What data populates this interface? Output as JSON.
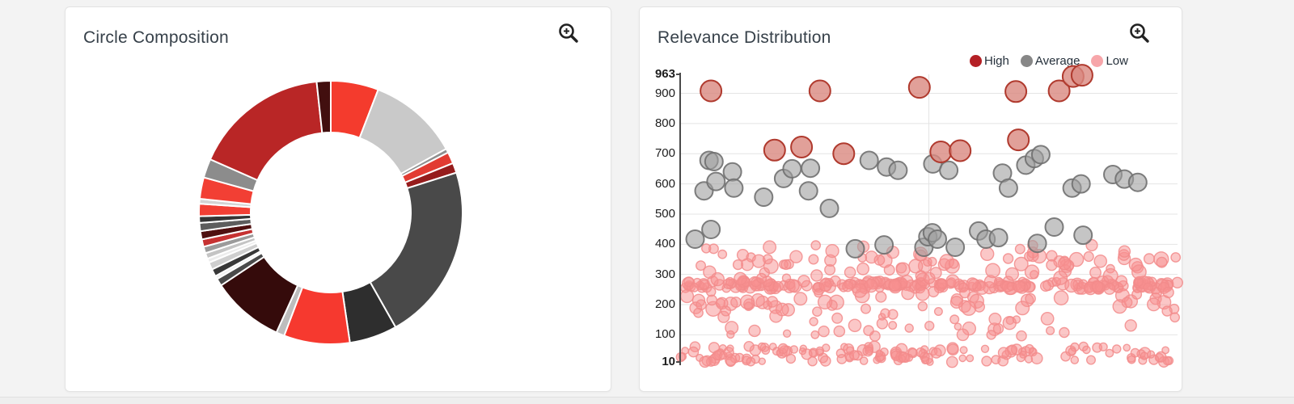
{
  "colors": {
    "page_background": "#f3f3f3",
    "card_background": "#ffffff",
    "card_border": "#e3e3e3",
    "title_text": "#37414a",
    "axis_line": "#4a4a4a",
    "gridline": "#e4e4e4",
    "icon": "#222222"
  },
  "left_card": {
    "zoom_icon": "zoom-in-icon"
  },
  "right_card": {
    "zoom_icon": "zoom-in-icon"
  },
  "chart_data": [
    {
      "type": "pie",
      "title": "Circle Composition",
      "donut": true,
      "inner_radius_px": 99,
      "outer_radius_px": 163,
      "start_angle_deg": 0,
      "segments": [
        {
          "color": "#f43b2d",
          "value": 5.8
        },
        {
          "color": "#c9c9c9",
          "value": 11.0
        },
        {
          "color": "#8f8f8f",
          "value": 0.5
        },
        {
          "color": "#e23b32",
          "value": 1.4
        },
        {
          "color": "#961c1c",
          "value": 1.2
        },
        {
          "color": "#494949",
          "value": 21.5
        },
        {
          "color": "#2e2e2e",
          "value": 5.8
        },
        {
          "color": "#f6392f",
          "value": 8.0
        },
        {
          "color": "#bdbdbd",
          "value": 1.0
        },
        {
          "color": "#350b0b",
          "value": 8.8
        },
        {
          "color": "#4a4a4a",
          "value": 0.9
        },
        {
          "color": "#f0f0f0",
          "value": 0.4
        },
        {
          "color": "#383838",
          "value": 0.9
        },
        {
          "color": "#cfcfcf",
          "value": 0.9
        },
        {
          "color": "#ececec",
          "value": 0.5
        },
        {
          "color": "#c4c4c4",
          "value": 0.7
        },
        {
          "color": "#9b9b9b",
          "value": 0.8
        },
        {
          "color": "#c63232",
          "value": 0.9
        },
        {
          "color": "#4f1010",
          "value": 1.0
        },
        {
          "color": "#5d5d5d",
          "value": 1.0
        },
        {
          "color": "#353535",
          "value": 0.8
        },
        {
          "color": "#f23f34",
          "value": 1.5
        },
        {
          "color": "#d4d4d4",
          "value": 0.6
        },
        {
          "color": "#f23f34",
          "value": 2.6
        },
        {
          "color": "#8c8c8c",
          "value": 2.3
        },
        {
          "color": "#b92626",
          "value": 16.5
        },
        {
          "color": "#420f0f",
          "value": 1.7
        }
      ]
    },
    {
      "type": "scatter",
      "title": "Relevance Distribution",
      "ylim": [
        10,
        963
      ],
      "yticks": [
        "963",
        "900",
        "800",
        "700",
        "600",
        "500",
        "400",
        "300",
        "200",
        "100",
        "10"
      ],
      "bold_yticks": [
        "963",
        "10"
      ],
      "x_gridline_frac": 0.5,
      "grid": true,
      "legend_position": "top-right",
      "legend": [
        {
          "label": "High",
          "color": "#b42025"
        },
        {
          "label": "Average",
          "color": "#878787"
        },
        {
          "label": "Low",
          "color": "#f7a6aa"
        }
      ],
      "series": [
        {
          "name": "Low",
          "fill": "#f78f8f",
          "fill_opacity": 0.5,
          "stroke": "#f28b8b",
          "stroke_opacity": 0.85,
          "clusters": [
            {
              "count": 210,
              "x": [
                0.0,
                1.0
              ],
              "value": [
                252,
                278
              ],
              "radius": [
                5,
                8
              ]
            },
            {
              "count": 70,
              "x": [
                0.0,
                1.0
              ],
              "value": [
                282,
                368
              ],
              "radius": [
                5,
                9
              ]
            },
            {
              "count": 55,
              "x": [
                0.0,
                1.0
              ],
              "value": [
                185,
                250
              ],
              "radius": [
                5,
                9
              ]
            },
            {
              "count": 45,
              "x": [
                0.0,
                1.0
              ],
              "value": [
                95,
                185
              ],
              "radius": [
                4,
                8
              ]
            },
            {
              "count": 150,
              "x": [
                0.0,
                1.0
              ],
              "value": [
                10,
                62
              ],
              "radius": [
                4,
                7
              ]
            },
            {
              "count": 22,
              "x": [
                0.0,
                1.0
              ],
              "value": [
                330,
                398
              ],
              "radius": [
                5,
                8
              ]
            }
          ]
        },
        {
          "name": "Average",
          "fill": "#9e9e9e",
          "fill_opacity": 0.6,
          "stroke": "#707070",
          "stroke_opacity": 0.9,
          "radius": 11,
          "points": [
            [
              0.058,
              678
            ],
            [
              0.068,
              674
            ],
            [
              0.105,
              640
            ],
            [
              0.048,
              577
            ],
            [
              0.072,
              608
            ],
            [
              0.108,
              586
            ],
            [
              0.168,
              556
            ],
            [
              0.208,
              618
            ],
            [
              0.225,
              650
            ],
            [
              0.262,
              652
            ],
            [
              0.258,
              577
            ],
            [
              0.3,
              519
            ],
            [
              0.38,
              678
            ],
            [
              0.415,
              656
            ],
            [
              0.438,
              645
            ],
            [
              0.508,
              666
            ],
            [
              0.54,
              645
            ],
            [
              0.648,
              636
            ],
            [
              0.66,
              586
            ],
            [
              0.695,
              662
            ],
            [
              0.712,
              684
            ],
            [
              0.725,
              697
            ],
            [
              0.788,
              586
            ],
            [
              0.806,
              600
            ],
            [
              0.87,
              631
            ],
            [
              0.893,
              616
            ],
            [
              0.92,
              605
            ],
            [
              0.03,
              417
            ],
            [
              0.062,
              449
            ],
            [
              0.352,
              385
            ],
            [
              0.41,
              398
            ],
            [
              0.49,
              390
            ],
            [
              0.498,
              425
            ],
            [
              0.507,
              438
            ],
            [
              0.517,
              417
            ],
            [
              0.553,
              390
            ],
            [
              0.6,
              444
            ],
            [
              0.615,
              417
            ],
            [
              0.64,
              422
            ],
            [
              0.718,
              403
            ],
            [
              0.752,
              457
            ],
            [
              0.81,
              430
            ]
          ]
        },
        {
          "name": "High",
          "fill": "#d98880",
          "fill_opacity": 0.8,
          "stroke": "#b03a2e",
          "stroke_opacity": 1,
          "radius": 13,
          "points": [
            [
              0.062,
              908
            ],
            [
              0.281,
              908
            ],
            [
              0.481,
              920
            ],
            [
              0.675,
              906
            ],
            [
              0.762,
              908
            ],
            [
              0.79,
              956
            ],
            [
              0.808,
              960
            ],
            [
              0.19,
              712
            ],
            [
              0.244,
              722
            ],
            [
              0.329,
              700
            ],
            [
              0.524,
              706
            ],
            [
              0.563,
              710
            ],
            [
              0.68,
              746
            ]
          ]
        }
      ]
    }
  ]
}
